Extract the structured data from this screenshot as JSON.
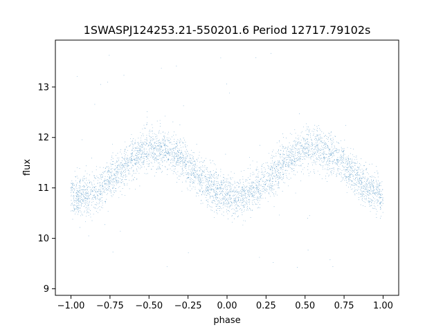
{
  "chart_data": {
    "type": "scatter",
    "title": "1SWASPJ124253.21-550201.6 Period 12717.79102s",
    "xlabel": "phase",
    "ylabel": "flux",
    "xlim": [
      -1.1,
      1.1
    ],
    "ylim": [
      8.87,
      13.93
    ],
    "x_ticks": [
      -1.0,
      -0.75,
      -0.5,
      -0.25,
      0.0,
      0.25,
      0.5,
      0.75,
      1.0
    ],
    "x_tick_labels": [
      "−1.00",
      "−0.75",
      "−0.50",
      "−0.25",
      "0.00",
      "0.25",
      "0.50",
      "0.75",
      "1.00"
    ],
    "y_ticks": [
      9,
      10,
      11,
      12,
      13
    ],
    "y_tick_labels": [
      "9",
      "10",
      "11",
      "12",
      "13"
    ],
    "grid": false,
    "legend": "none",
    "marker_color": "#1f77b4",
    "series": [
      {
        "model": "folded-light-curve",
        "phase_range": [
          -1.0,
          1.0
        ],
        "mean_flux": 11.3,
        "amplitude": 0.48,
        "peak_phases": [
          -0.45,
          0.55
        ],
        "trough_phases": [
          -0.95,
          0.05
        ],
        "scatter_sigma": 0.2,
        "outlier_range": [
          9.1,
          13.7
        ],
        "n_points": 16000
      }
    ]
  }
}
